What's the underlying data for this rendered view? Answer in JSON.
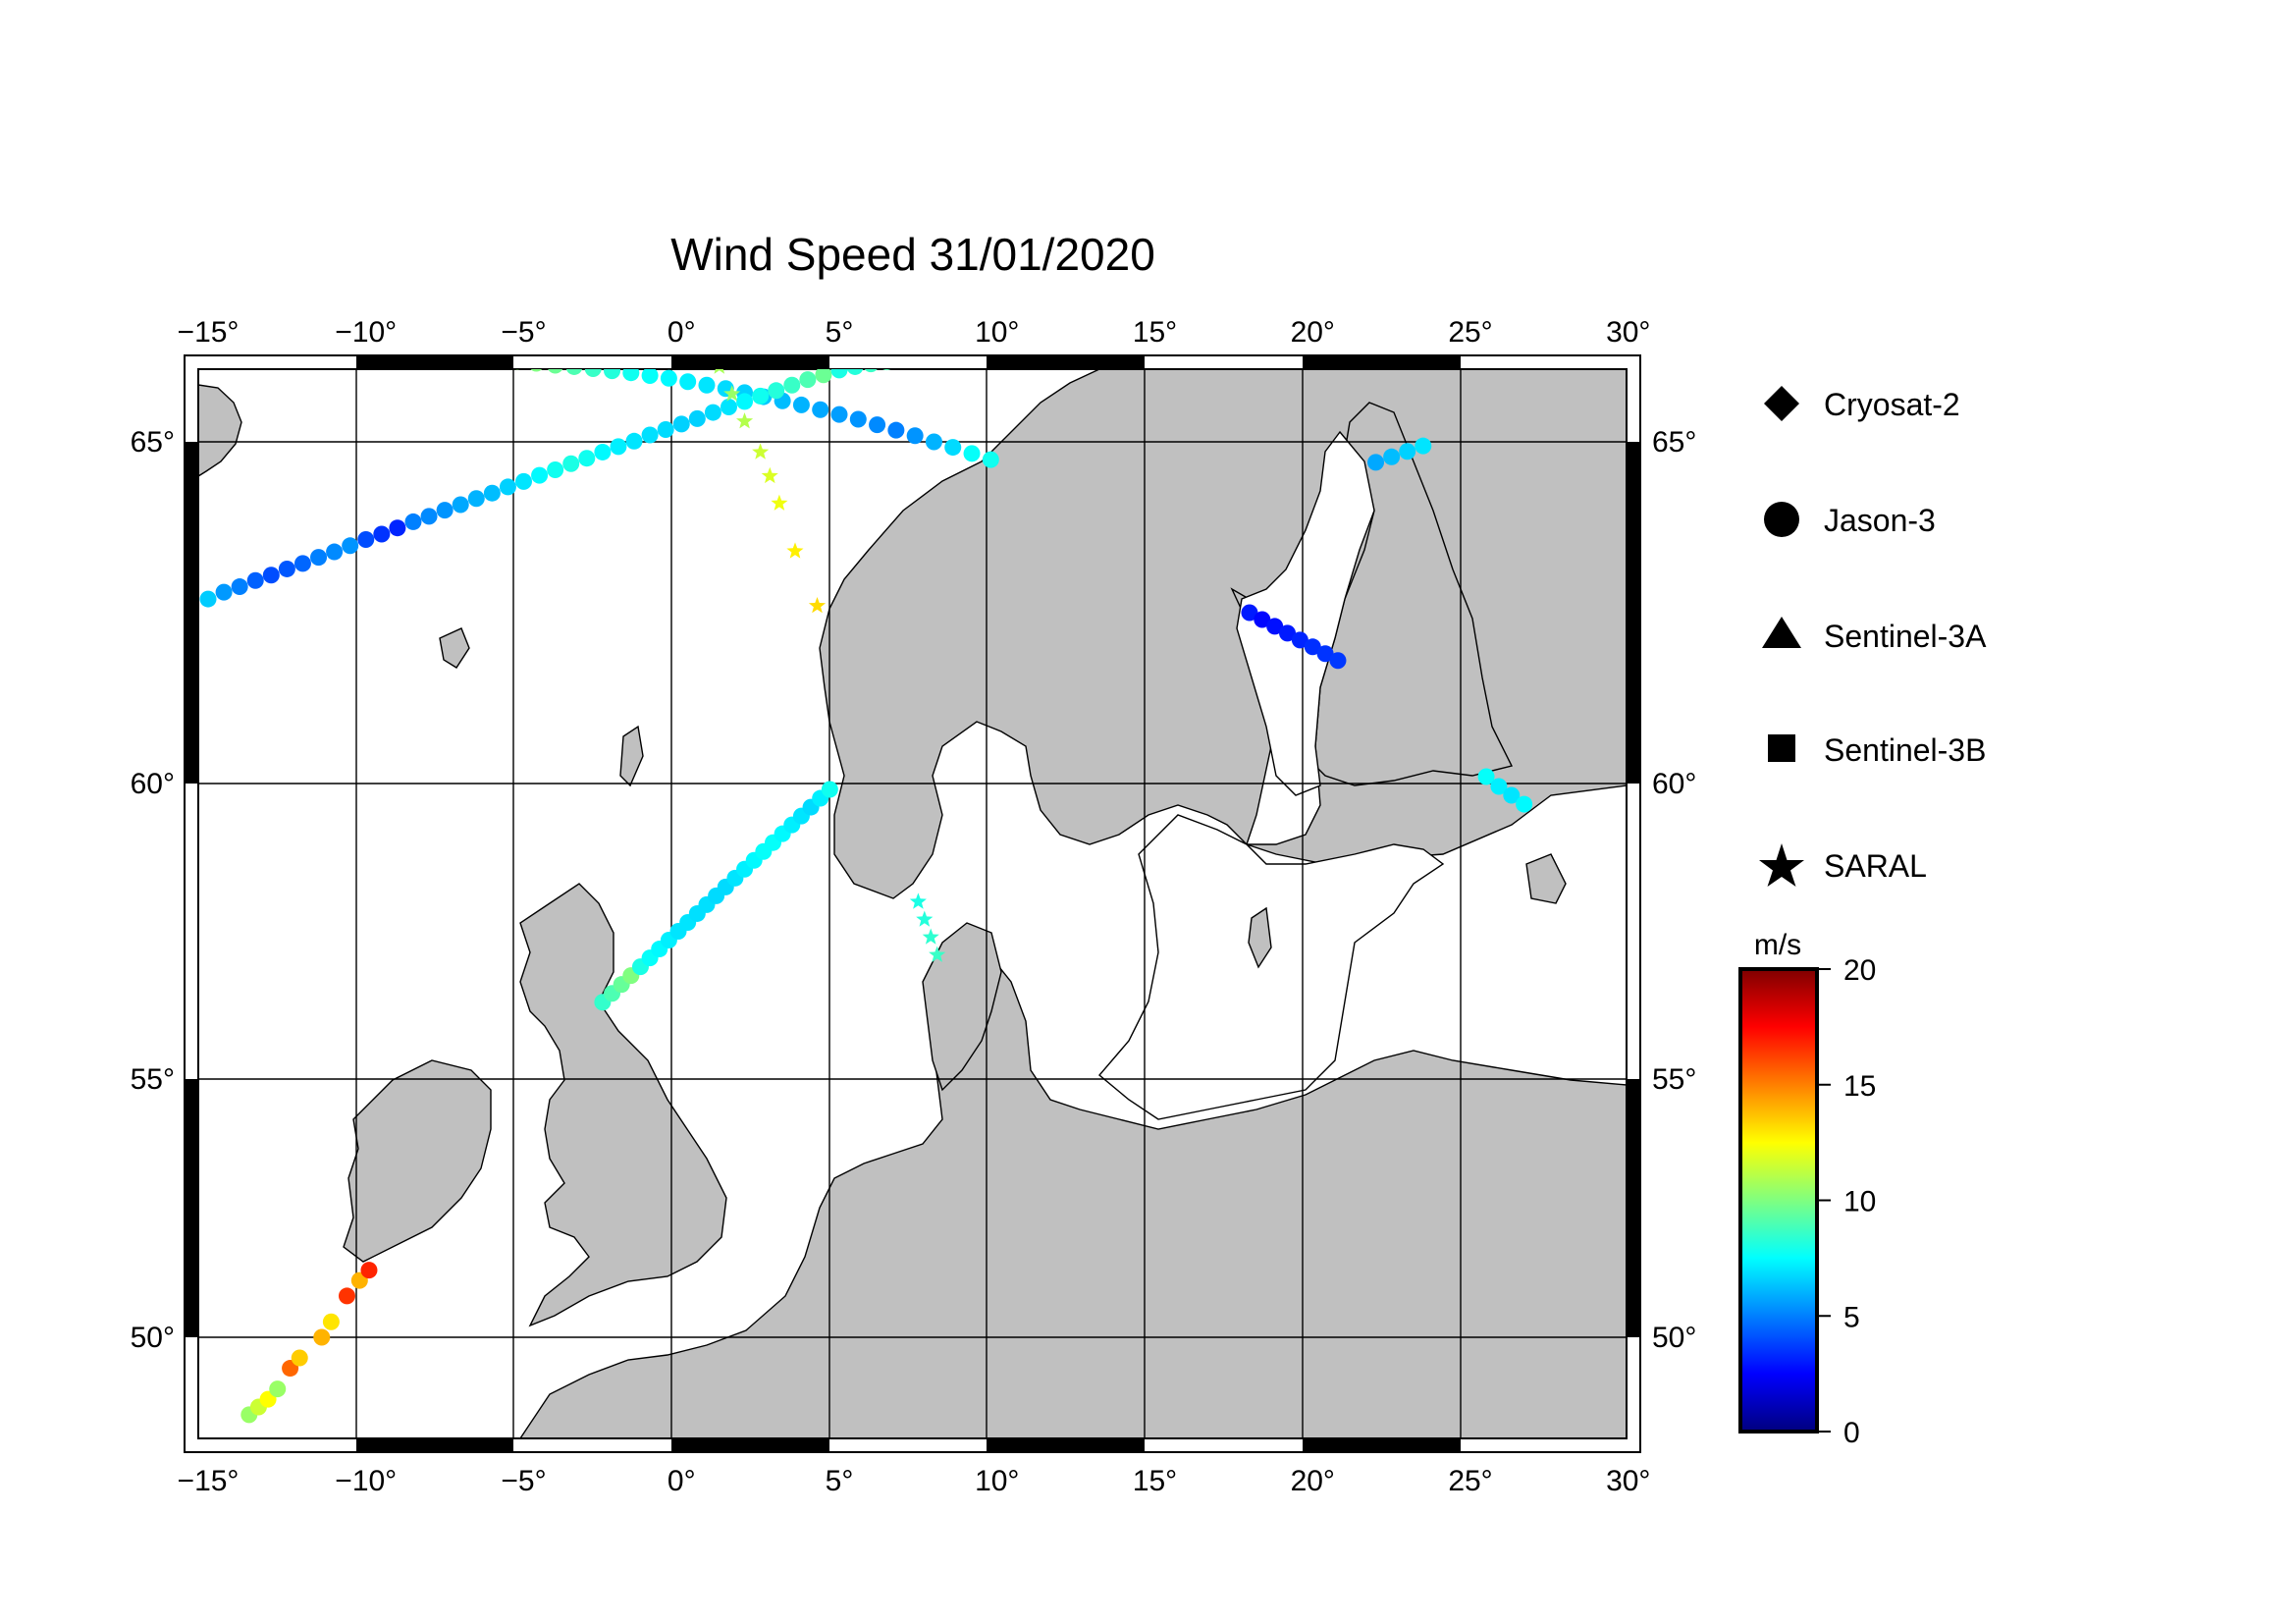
{
  "title": "Wind Speed 31/01/2020",
  "map": {
    "lon_ticks": [
      "−15°",
      "−10°",
      "−5°",
      "0°",
      "5°",
      "10°",
      "15°",
      "20°",
      "25°",
      "30°"
    ],
    "lat_ticks": [
      "65°",
      "60°",
      "55°",
      "50°"
    ],
    "lon_values": [
      -15,
      -10,
      -5,
      0,
      5,
      10,
      15,
      20,
      25,
      30
    ],
    "lat_values": [
      65,
      60,
      55,
      50
    ],
    "lon_range": [
      -15.5,
      30.5
    ],
    "lat_range": [
      48.2,
      66.3
    ],
    "land_color": "#c0c0c0",
    "sea_color": "#ffffff",
    "grid": true
  },
  "legend": {
    "items": [
      {
        "label": "Cryosat-2",
        "symbol": "diamond"
      },
      {
        "label": "Jason-3",
        "symbol": "circle"
      },
      {
        "label": "Sentinel-3A",
        "symbol": "triangle"
      },
      {
        "label": "Sentinel-3B",
        "symbol": "square"
      },
      {
        "label": "SARAL",
        "symbol": "star"
      }
    ]
  },
  "colorbar": {
    "unit": "m/s",
    "range": [
      0,
      20
    ],
    "ticks": [
      "0",
      "5",
      "10",
      "15",
      "20"
    ],
    "tick_values": [
      0,
      5,
      10,
      15,
      20
    ],
    "colormap": "jet"
  },
  "chart_data": {
    "type": "scatter",
    "title": "Wind Speed 31/01/2020",
    "color_unit": "m/s",
    "tracks": [
      {
        "satellite": "Jason-3",
        "symbol": "circle",
        "points": [
          [
            -5.8,
            66.2,
            10.5
          ],
          [
            -5.2,
            66.18,
            10.2
          ],
          [
            -4.6,
            66.15,
            10
          ],
          [
            -4,
            66.12,
            9.6
          ],
          [
            -3.4,
            66.1,
            9
          ],
          [
            -2.8,
            66.07,
            8.6
          ],
          [
            -2.2,
            66.04,
            8.2
          ],
          [
            -1.6,
            66.01,
            7.8
          ],
          [
            -1,
            65.97,
            7.6
          ],
          [
            -0.4,
            65.93,
            7.4
          ],
          [
            0.2,
            65.88,
            7.2
          ],
          [
            0.8,
            65.83,
            7
          ],
          [
            1.4,
            65.78,
            6.8
          ],
          [
            2,
            65.72,
            6.6
          ],
          [
            2.6,
            65.66,
            6.4
          ],
          [
            3.2,
            65.6,
            6.2
          ],
          [
            3.8,
            65.54,
            6
          ],
          [
            4.4,
            65.47,
            5.8
          ],
          [
            5,
            65.4,
            5.6
          ],
          [
            5.6,
            65.33,
            5.4
          ],
          [
            6.2,
            65.25,
            5.2
          ],
          [
            6.8,
            65.17,
            5
          ],
          [
            7.4,
            65.09,
            5.4
          ],
          [
            8,
            65,
            6
          ],
          [
            8.6,
            64.92,
            6.8
          ],
          [
            9.2,
            64.83,
            7.6
          ],
          [
            9.8,
            64.74,
            7.8
          ]
        ]
      },
      {
        "satellite": "Jason-3",
        "symbol": "circle",
        "points": [
          [
            -15,
            62.7,
            6.5
          ],
          [
            -14.5,
            62.8,
            5.5
          ],
          [
            -14,
            62.88,
            5
          ],
          [
            -13.5,
            62.97,
            4.4
          ],
          [
            -13,
            63.05,
            4
          ],
          [
            -12.5,
            63.14,
            4.2
          ],
          [
            -12,
            63.22,
            4.5
          ],
          [
            -11.5,
            63.31,
            5
          ],
          [
            -11,
            63.39,
            5.2
          ],
          [
            -10.5,
            63.48,
            5.4
          ],
          [
            -10,
            63.57,
            4
          ],
          [
            -9.5,
            63.65,
            3.5
          ],
          [
            -9,
            63.74,
            3.2
          ],
          [
            -8.5,
            63.83,
            5
          ],
          [
            -8,
            63.91,
            5.2
          ],
          [
            -7.5,
            64,
            5.4
          ],
          [
            -7,
            64.08,
            5.8
          ],
          [
            -6.5,
            64.17,
            6
          ],
          [
            -6,
            64.25,
            6.2
          ],
          [
            -5.5,
            64.34,
            6.6
          ],
          [
            -5,
            64.42,
            7
          ],
          [
            -4.5,
            64.51,
            7.4
          ],
          [
            -4,
            64.59,
            7.8
          ],
          [
            -3.5,
            64.68,
            8
          ],
          [
            -3,
            64.76,
            7.8
          ],
          [
            -2.5,
            64.85,
            7.4
          ],
          [
            -2,
            64.93,
            7.2
          ],
          [
            -1.5,
            65.01,
            7
          ],
          [
            -1,
            65.1,
            6.9
          ],
          [
            -0.5,
            65.18,
            6.8
          ],
          [
            0,
            65.26,
            6.6
          ],
          [
            0.5,
            65.34,
            6.6
          ],
          [
            1,
            65.43,
            6.8
          ],
          [
            1.5,
            65.51,
            7
          ],
          [
            2,
            65.59,
            7.4
          ],
          [
            2.5,
            65.67,
            7.8
          ],
          [
            3,
            65.75,
            8.2
          ],
          [
            3.5,
            65.83,
            8.6
          ],
          [
            4,
            65.91,
            9
          ],
          [
            4.5,
            65.98,
            9.6
          ],
          [
            5,
            66.05,
            8
          ],
          [
            5.5,
            66.1,
            8.2
          ],
          [
            6,
            66.14,
            8.6
          ],
          [
            6.5,
            66.17,
            9
          ],
          [
            7,
            66.2,
            9.4
          ],
          [
            7.5,
            66.22,
            9.6
          ],
          [
            8,
            66.24,
            9.8
          ],
          [
            8.5,
            66.26,
            10
          ],
          [
            9,
            66.28,
            10.2
          ]
        ]
      },
      {
        "satellite": "Jason-3",
        "symbol": "circle",
        "points": [
          [
            -2.5,
            56.3,
            8.5
          ],
          [
            -2.2,
            56.45,
            9
          ],
          [
            -1.9,
            56.6,
            9.5
          ],
          [
            -1.6,
            56.75,
            10
          ],
          [
            -1.3,
            56.9,
            8
          ],
          [
            -1,
            57.05,
            7.6
          ],
          [
            -0.7,
            57.2,
            7.4
          ],
          [
            -0.4,
            57.35,
            7.2
          ],
          [
            -0.1,
            57.5,
            7
          ],
          [
            0.2,
            57.65,
            7
          ],
          [
            0.5,
            57.8,
            6.9
          ],
          [
            0.8,
            57.95,
            6.9
          ],
          [
            1.1,
            58.1,
            6.8
          ],
          [
            1.4,
            58.25,
            6.8
          ],
          [
            1.7,
            58.4,
            7
          ],
          [
            2,
            58.55,
            7.2
          ],
          [
            2.3,
            58.7,
            7.4
          ],
          [
            2.6,
            58.85,
            7.6
          ],
          [
            2.9,
            59,
            7.6
          ],
          [
            3.2,
            59.15,
            7.4
          ],
          [
            3.5,
            59.3,
            7.2
          ],
          [
            3.8,
            59.45,
            7
          ],
          [
            4.1,
            59.6,
            6.8
          ],
          [
            4.4,
            59.75,
            7.2
          ],
          [
            4.7,
            59.9,
            7.8
          ]
        ]
      },
      {
        "satellite": "Jason-3",
        "symbol": "circle",
        "points": [
          [
            -13.7,
            48.5,
            10.5
          ],
          [
            -13.4,
            48.65,
            11.5
          ],
          [
            -13.1,
            48.8,
            12.5
          ],
          [
            -12.8,
            49,
            10.5
          ],
          [
            -12.4,
            49.4,
            15.5
          ],
          [
            -12.1,
            49.6,
            13.5
          ],
          [
            -11.4,
            50,
            14
          ],
          [
            -11.1,
            50.3,
            13
          ],
          [
            -10.6,
            50.8,
            16.5
          ],
          [
            -10.2,
            51.1,
            14
          ],
          [
            -9.9,
            51.3,
            16.8
          ]
        ]
      },
      {
        "satellite": "Jason-3",
        "symbol": "circle",
        "points": [
          [
            18,
            62.5,
            3
          ],
          [
            18.4,
            62.4,
            2.6
          ],
          [
            18.8,
            62.3,
            2.8
          ],
          [
            19.2,
            62.2,
            3
          ],
          [
            19.6,
            62.1,
            3.2
          ],
          [
            20,
            62,
            3.4
          ],
          [
            20.4,
            61.9,
            3.5
          ],
          [
            20.8,
            61.8,
            3.6
          ]
        ]
      },
      {
        "satellite": "Jason-3",
        "symbol": "circle",
        "points": [
          [
            22,
            64.7,
            5.8
          ],
          [
            22.5,
            64.78,
            6.2
          ],
          [
            23,
            64.86,
            6.6
          ],
          [
            23.5,
            64.94,
            7
          ]
        ]
      },
      {
        "satellite": "Jason-3",
        "symbol": "circle",
        "points": [
          [
            25.5,
            60.1,
            7.6
          ],
          [
            25.9,
            59.95,
            7.2
          ],
          [
            26.3,
            59.8,
            7
          ],
          [
            26.7,
            59.65,
            7.4
          ]
        ]
      },
      {
        "satellite": "SARAL",
        "symbol": "star",
        "points": [
          [
            1.2,
            66.1,
            10.8
          ],
          [
            1.6,
            65.7,
            10.5
          ],
          [
            2,
            65.3,
            11
          ],
          [
            2.5,
            64.85,
            11.5
          ],
          [
            2.8,
            64.5,
            11.8
          ],
          [
            3.1,
            64.1,
            12.2
          ],
          [
            3.6,
            63.4,
            12.8
          ],
          [
            4.3,
            62.6,
            13.2
          ]
        ]
      },
      {
        "satellite": "SARAL",
        "symbol": "star",
        "points": [
          [
            7.5,
            58,
            8
          ],
          [
            7.7,
            57.7,
            8.2
          ],
          [
            7.9,
            57.4,
            8.4
          ],
          [
            8.1,
            57.1,
            8.6
          ]
        ]
      }
    ]
  }
}
